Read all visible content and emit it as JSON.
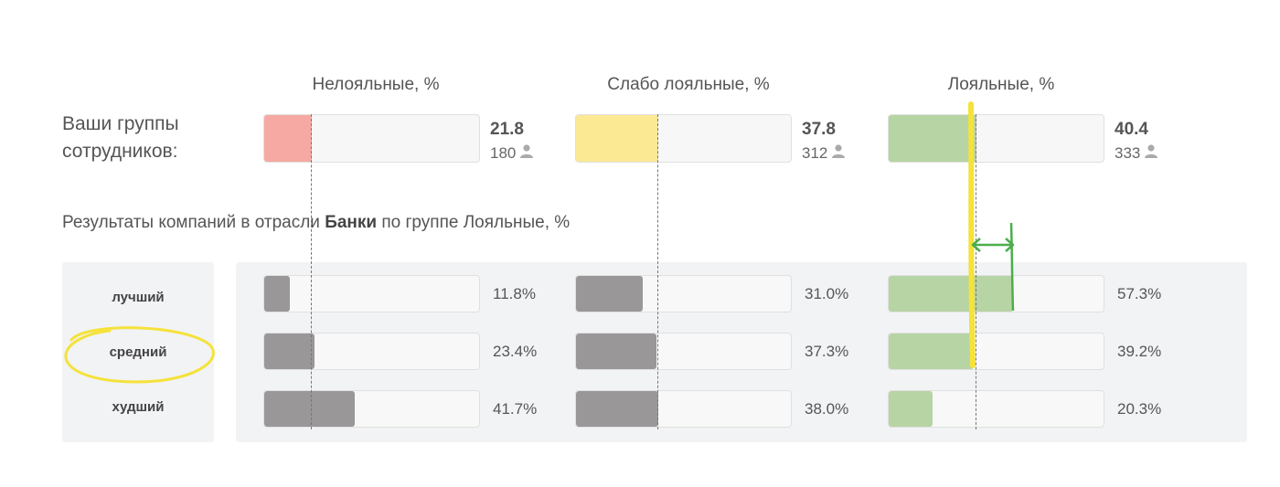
{
  "your_groups_label": "Ваши группы сотрудников:",
  "columns": [
    {
      "header": "Нелояльные, %",
      "your_value": 21.8,
      "your_value_label": "21.8",
      "count": "180",
      "color": "#f6a9a2"
    },
    {
      "header": "Слабо лояльные, %",
      "your_value": 37.8,
      "your_value_label": "37.8",
      "count": "312",
      "color": "#fce993"
    },
    {
      "header": "Лояльные, %",
      "your_value": 40.4,
      "your_value_label": "40.4",
      "count": "333",
      "color": "#b7d4a4"
    }
  ],
  "section": {
    "prefix": "Результаты компаний в отрасли ",
    "industry": "Банки",
    "suffix": " по группе Лояльные, %"
  },
  "rows": [
    {
      "label": "лучший",
      "values": [
        11.8,
        31.0,
        57.3
      ],
      "labels": [
        "11.8%",
        "31.0%",
        "57.3%"
      ]
    },
    {
      "label": "средний",
      "values": [
        23.4,
        37.3,
        39.2
      ],
      "labels": [
        "23.4%",
        "37.3%",
        "39.2%"
      ]
    },
    {
      "label": "худший",
      "values": [
        41.7,
        38.0,
        20.3
      ],
      "labels": [
        "41.7%",
        "38.0%",
        "20.3%"
      ]
    }
  ],
  "colors": {
    "benchmark_gray": "#999798",
    "benchmark_loyal": "#b7d4a4",
    "highlight_yellow": "#f5e23a",
    "arrow_green": "#4cae4c"
  },
  "icons": [
    "person-icon"
  ],
  "chart_data": {
    "type": "bar",
    "categories": [
      "Нелояльные, %",
      "Слабо лояльные, %",
      "Лояльные, %"
    ],
    "series": [
      {
        "name": "Ваши группы сотрудников:",
        "values": [
          21.8,
          37.8,
          40.4
        ]
      },
      {
        "name": "лучший",
        "values": [
          11.8,
          31.0,
          57.3
        ]
      },
      {
        "name": "средний",
        "values": [
          23.4,
          37.3,
          39.2
        ]
      },
      {
        "name": "худший",
        "values": [
          41.7,
          38.0,
          20.3
        ]
      }
    ],
    "counts": [
      180,
      312,
      333
    ],
    "xlim": [
      0,
      100
    ]
  }
}
